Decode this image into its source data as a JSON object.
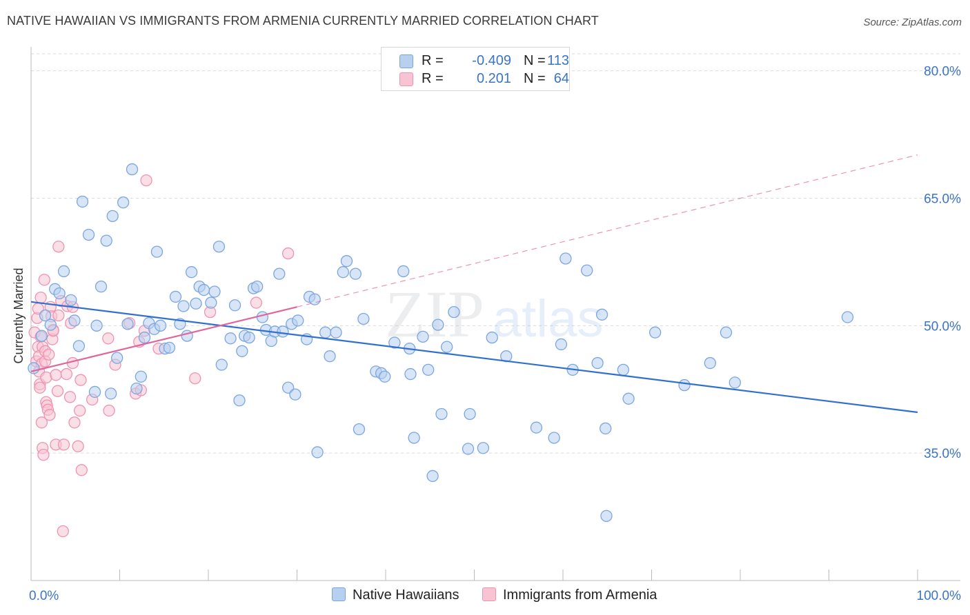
{
  "title": "NATIVE HAWAIIAN VS IMMIGRANTS FROM ARMENIA CURRENTLY MARRIED CORRELATION CHART",
  "source": "Source: ZipAtlas.com",
  "watermark": {
    "zip": "ZIP",
    "atlas": "atlas"
  },
  "legend": {
    "rows": [
      {
        "r_label": "R =",
        "r_value": "-0.409",
        "n_label": "N =",
        "n_value": "113"
      },
      {
        "r_label": "R =",
        "r_value": "0.201",
        "n_label": "N =",
        "n_value": "64"
      }
    ]
  },
  "bottom_legend": {
    "blue": "Native Hawaiians",
    "pink": "Immigrants from Armenia"
  },
  "colors": {
    "blue_fill": "#b8d0f0",
    "blue_stroke": "#7aa6e0",
    "blue_line": "#2f6fd1",
    "pink_fill": "#f8c4d4",
    "pink_stroke": "#ee93b1",
    "pink_line": "#e0669a",
    "axis_text": "#3a74c9",
    "grid": "#d9d9d9"
  },
  "chart_data": {
    "type": "scatter",
    "title": "NATIVE HAWAIIAN VS IMMIGRANTS FROM ARMENIA CURRENTLY MARRIED CORRELATION CHART",
    "xlabel": "",
    "ylabel": "Currently Married",
    "xlim": [
      0,
      100
    ],
    "ylim": [
      20,
      82
    ],
    "x_tick_labels": [
      "0.0%",
      "100.0%"
    ],
    "y_ticks": [
      35,
      50,
      65,
      80
    ],
    "y_tick_labels": [
      "35.0%",
      "50.0%",
      "65.0%",
      "80.0%"
    ],
    "series": [
      {
        "name": "Native Hawaiians",
        "color": "#7aa6e0",
        "r": -0.409,
        "n": 113,
        "trend": {
          "x": [
            0,
            100
          ],
          "y": [
            52.8,
            39.8
          ],
          "dashed_to": null
        },
        "points": [
          [
            0.3,
            45.0
          ],
          [
            1.2,
            48.8
          ],
          [
            1.6,
            51.2
          ],
          [
            2.2,
            50.1
          ],
          [
            2.7,
            54.3
          ],
          [
            3.2,
            53.8
          ],
          [
            3.7,
            56.4
          ],
          [
            4.5,
            53.0
          ],
          [
            4.9,
            50.6
          ],
          [
            5.4,
            47.6
          ],
          [
            5.8,
            64.6
          ],
          [
            6.5,
            60.7
          ],
          [
            7.2,
            42.2
          ],
          [
            7.4,
            50.0
          ],
          [
            7.9,
            54.6
          ],
          [
            8.5,
            60.0
          ],
          [
            9.0,
            42.0
          ],
          [
            9.2,
            62.9
          ],
          [
            9.7,
            46.2
          ],
          [
            10.4,
            64.5
          ],
          [
            10.9,
            50.2
          ],
          [
            11.4,
            68.4
          ],
          [
            11.9,
            42.6
          ],
          [
            12.4,
            44.0
          ],
          [
            12.8,
            48.6
          ],
          [
            13.3,
            50.3
          ],
          [
            13.9,
            49.6
          ],
          [
            14.2,
            58.7
          ],
          [
            14.6,
            50.0
          ],
          [
            15.1,
            47.3
          ],
          [
            15.6,
            47.4
          ],
          [
            16.3,
            53.4
          ],
          [
            16.8,
            50.2
          ],
          [
            17.2,
            52.3
          ],
          [
            17.6,
            48.8
          ],
          [
            18.1,
            56.3
          ],
          [
            18.6,
            52.6
          ],
          [
            19.0,
            54.6
          ],
          [
            19.5,
            54.2
          ],
          [
            20.3,
            52.7
          ],
          [
            20.7,
            54.0
          ],
          [
            21.2,
            59.3
          ],
          [
            21.5,
            45.4
          ],
          [
            22.5,
            48.5
          ],
          [
            23.0,
            52.4
          ],
          [
            23.5,
            41.2
          ],
          [
            23.8,
            47.0
          ],
          [
            24.1,
            48.8
          ],
          [
            24.6,
            48.6
          ],
          [
            25.1,
            54.4
          ],
          [
            25.5,
            54.6
          ],
          [
            26.1,
            51.0
          ],
          [
            26.5,
            49.5
          ],
          [
            27.1,
            48.2
          ],
          [
            27.5,
            49.3
          ],
          [
            28.0,
            56.1
          ],
          [
            28.4,
            49.3
          ],
          [
            29.0,
            42.7
          ],
          [
            29.4,
            50.2
          ],
          [
            29.8,
            41.9
          ],
          [
            30.1,
            50.6
          ],
          [
            31.1,
            48.4
          ],
          [
            31.4,
            53.4
          ],
          [
            32.0,
            53.1
          ],
          [
            32.3,
            35.1
          ],
          [
            33.2,
            49.2
          ],
          [
            33.7,
            46.4
          ],
          [
            34.4,
            49.2
          ],
          [
            35.2,
            56.3
          ],
          [
            35.6,
            57.6
          ],
          [
            36.6,
            56.1
          ],
          [
            37.0,
            37.8
          ],
          [
            37.5,
            50.8
          ],
          [
            38.9,
            44.6
          ],
          [
            39.5,
            44.4
          ],
          [
            39.9,
            44.0
          ],
          [
            41.0,
            48.0
          ],
          [
            42.0,
            56.4
          ],
          [
            42.7,
            47.3
          ],
          [
            42.8,
            44.3
          ],
          [
            43.2,
            36.8
          ],
          [
            44.2,
            48.7
          ],
          [
            44.8,
            44.8
          ],
          [
            45.3,
            32.3
          ],
          [
            45.9,
            50.1
          ],
          [
            46.3,
            39.6
          ],
          [
            46.9,
            47.5
          ],
          [
            47.7,
            51.6
          ],
          [
            49.3,
            35.5
          ],
          [
            49.5,
            39.6
          ],
          [
            51.0,
            35.6
          ],
          [
            52.0,
            48.6
          ],
          [
            53.6,
            46.4
          ],
          [
            57.0,
            38.0
          ],
          [
            59.0,
            36.8
          ],
          [
            59.8,
            47.8
          ],
          [
            60.3,
            57.9
          ],
          [
            61.1,
            44.8
          ],
          [
            62.7,
            56.5
          ],
          [
            63.9,
            45.6
          ],
          [
            64.4,
            51.3
          ],
          [
            64.8,
            37.9
          ],
          [
            64.9,
            27.6
          ],
          [
            66.8,
            44.8
          ],
          [
            67.4,
            41.4
          ],
          [
            70.4,
            49.2
          ],
          [
            73.7,
            43.0
          ],
          [
            76.6,
            45.6
          ],
          [
            78.4,
            49.2
          ],
          [
            79.4,
            43.3
          ],
          [
            92.1,
            51.0
          ]
        ]
      },
      {
        "name": "Immigrants from Armenia",
        "color": "#ee93b1",
        "r": 0.201,
        "n": 64,
        "trend": {
          "x": [
            0,
            30
          ],
          "y": [
            44.6,
            52.2
          ],
          "dashed_to": [
            100,
            70.1
          ]
        },
        "points": [
          [
            0.4,
            49.2
          ],
          [
            0.6,
            45.8
          ],
          [
            0.7,
            50.9
          ],
          [
            0.8,
            52.0
          ],
          [
            0.8,
            47.5
          ],
          [
            0.9,
            44.6
          ],
          [
            0.9,
            46.4
          ],
          [
            1.0,
            43.1
          ],
          [
            1.0,
            42.7
          ],
          [
            1.1,
            53.3
          ],
          [
            1.1,
            48.7
          ],
          [
            1.2,
            45.5
          ],
          [
            1.3,
            47.5
          ],
          [
            1.2,
            38.6
          ],
          [
            1.3,
            35.6
          ],
          [
            1.4,
            34.8
          ],
          [
            1.5,
            55.4
          ],
          [
            1.6,
            47.0
          ],
          [
            1.6,
            45.8
          ],
          [
            1.7,
            43.9
          ],
          [
            1.7,
            41.0
          ],
          [
            1.8,
            40.6
          ],
          [
            1.9,
            40.1
          ],
          [
            2.0,
            46.6
          ],
          [
            2.1,
            39.5
          ],
          [
            2.2,
            52.2
          ],
          [
            2.3,
            51.1
          ],
          [
            2.4,
            48.4
          ],
          [
            2.5,
            49.5
          ],
          [
            2.5,
            49.4
          ],
          [
            2.8,
            36.0
          ],
          [
            2.8,
            44.2
          ],
          [
            3.0,
            42.3
          ],
          [
            3.1,
            51.2
          ],
          [
            3.1,
            59.3
          ],
          [
            3.4,
            52.9
          ],
          [
            3.6,
            25.8
          ],
          [
            3.7,
            36.0
          ],
          [
            4.0,
            44.3
          ],
          [
            4.1,
            52.3
          ],
          [
            4.4,
            41.6
          ],
          [
            4.5,
            50.3
          ],
          [
            4.7,
            52.2
          ],
          [
            4.7,
            45.6
          ],
          [
            4.9,
            38.6
          ],
          [
            5.3,
            35.8
          ],
          [
            5.5,
            40.0
          ],
          [
            5.6,
            43.6
          ],
          [
            5.7,
            33.0
          ],
          [
            6.9,
            41.3
          ],
          [
            8.7,
            48.5
          ],
          [
            8.8,
            40.0
          ],
          [
            9.5,
            45.4
          ],
          [
            11.1,
            50.3
          ],
          [
            11.8,
            42.0
          ],
          [
            12.2,
            48.1
          ],
          [
            12.4,
            42.4
          ],
          [
            12.8,
            49.4
          ],
          [
            13.0,
            67.1
          ],
          [
            14.4,
            47.3
          ],
          [
            18.5,
            43.8
          ],
          [
            20.2,
            51.6
          ],
          [
            25.4,
            52.7
          ],
          [
            29.0,
            58.5
          ]
        ]
      }
    ]
  }
}
